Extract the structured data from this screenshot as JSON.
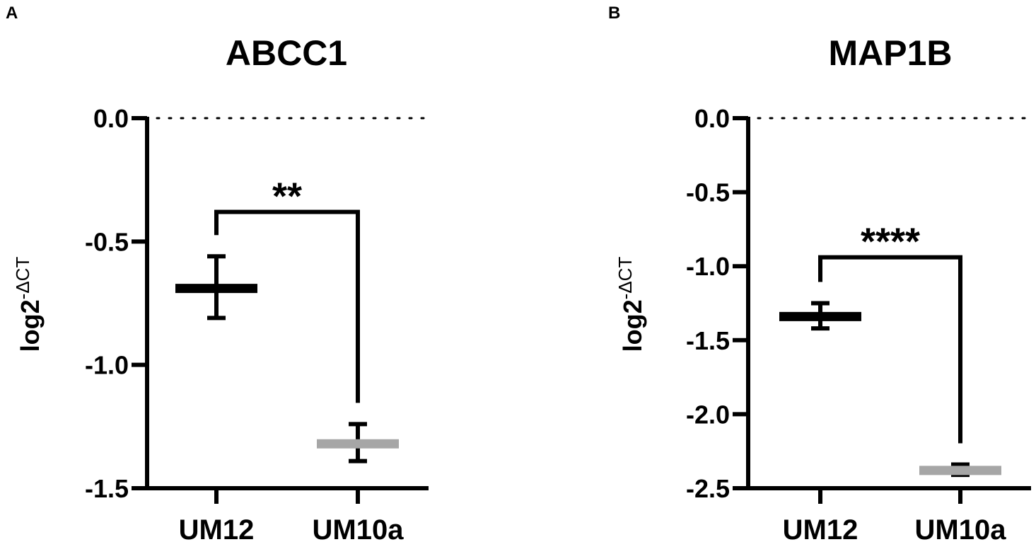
{
  "chart_data": [
    {
      "panel": "A",
      "type": "scatter",
      "title": "ABCC1",
      "ylabel": "log2",
      "ylabel_superscript": "-ΔCT",
      "ylim": [
        -1.5,
        0.0
      ],
      "yticks": [
        0.0,
        -0.5,
        -1.0,
        -1.5
      ],
      "ytick_labels": [
        "0.0",
        "-0.5",
        "-1.0",
        "-1.5"
      ],
      "reference_line": 0.0,
      "grid": false,
      "categories": [
        "UM12",
        "UM10a"
      ],
      "series": [
        {
          "category": "UM12",
          "mean": -0.69,
          "err_low": -0.81,
          "err_high": -0.56,
          "color": "#000000"
        },
        {
          "category": "UM10a",
          "mean": -1.32,
          "err_low": -1.39,
          "err_high": -1.24,
          "color": "#a6a6a6"
        }
      ],
      "significance": {
        "label": "**",
        "y": -0.38
      }
    },
    {
      "panel": "B",
      "type": "scatter",
      "title": "MAP1B",
      "ylabel": "log2",
      "ylabel_superscript": "-ΔCT",
      "ylim": [
        -2.5,
        0.0
      ],
      "yticks": [
        0.0,
        -0.5,
        -1.0,
        -1.5,
        -2.0,
        -2.5
      ],
      "ytick_labels": [
        "0.0",
        "-0.5",
        "-1.0",
        "-1.5",
        "-2.0",
        "-2.5"
      ],
      "reference_line": 0.0,
      "grid": false,
      "categories": [
        "UM12",
        "UM10a"
      ],
      "series": [
        {
          "category": "UM12",
          "mean": -1.34,
          "err_low": -1.42,
          "err_high": -1.25,
          "color": "#000000"
        },
        {
          "category": "UM10a",
          "mean": -2.38,
          "err_low": -2.41,
          "err_high": -2.34,
          "color": "#a6a6a6"
        }
      ],
      "significance": {
        "label": "****",
        "y": -0.94
      }
    }
  ]
}
